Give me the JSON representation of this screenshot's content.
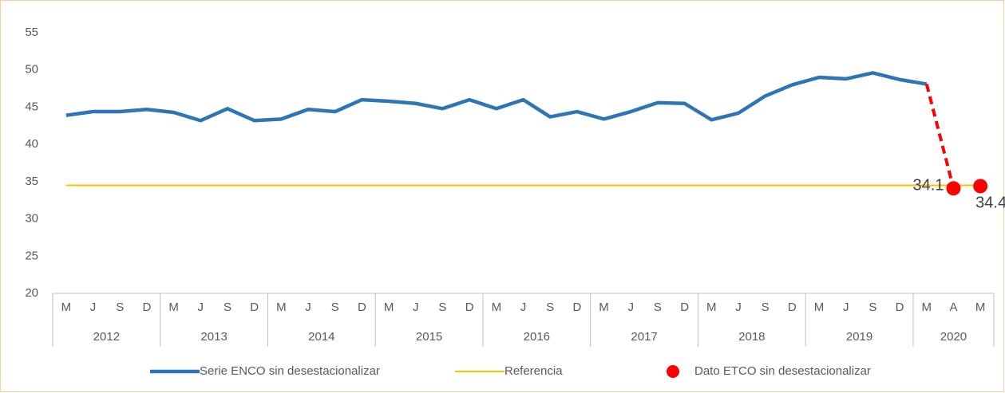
{
  "chart_data": {
    "type": "line",
    "groups": [
      {
        "label": "2012",
        "months": [
          "M",
          "J",
          "S",
          "D"
        ]
      },
      {
        "label": "2013",
        "months": [
          "M",
          "J",
          "S",
          "D"
        ]
      },
      {
        "label": "2014",
        "months": [
          "M",
          "J",
          "S",
          "D"
        ]
      },
      {
        "label": "2015",
        "months": [
          "M",
          "J",
          "S",
          "D"
        ]
      },
      {
        "label": "2016",
        "months": [
          "M",
          "J",
          "S",
          "D"
        ]
      },
      {
        "label": "2017",
        "months": [
          "M",
          "J",
          "S",
          "D"
        ]
      },
      {
        "label": "2018",
        "months": [
          "M",
          "J",
          "S",
          "D"
        ]
      },
      {
        "label": "2019",
        "months": [
          "M",
          "J",
          "S",
          "D"
        ]
      },
      {
        "label": "2020",
        "months": [
          "M",
          "A",
          "M"
        ]
      }
    ],
    "series": [
      {
        "name": "Serie ENCO sin desestacionalizar",
        "color": "#2e75b6",
        "values": [
          43.9,
          44.4,
          44.4,
          44.7,
          44.3,
          43.2,
          44.8,
          43.2,
          43.4,
          44.7,
          44.4,
          46.0,
          45.8,
          45.5,
          44.8,
          46.0,
          44.8,
          46.0,
          43.7,
          44.4,
          43.4,
          44.4,
          45.6,
          45.5,
          43.3,
          44.2,
          46.5,
          48.0,
          49.0,
          48.8,
          49.6,
          48.7,
          48.1,
          null,
          null
        ]
      },
      {
        "name": "Referencia",
        "color": "#ffc000",
        "values": [
          34.5,
          34.5,
          34.5,
          34.5,
          34.5,
          34.5,
          34.5,
          34.5,
          34.5,
          34.5,
          34.5,
          34.5,
          34.5,
          34.5,
          34.5,
          34.5,
          34.5,
          34.5,
          34.5,
          34.5,
          34.5,
          34.5,
          34.5,
          34.5,
          34.5,
          34.5,
          34.5,
          34.5,
          34.5,
          34.5,
          34.5,
          34.5,
          34.5,
          34.5,
          34.5
        ]
      },
      {
        "name": "Dato ETCO sin desestacionalizar",
        "color": "#ff0000",
        "marker": "dot",
        "values": [
          null,
          null,
          null,
          null,
          null,
          null,
          null,
          null,
          null,
          null,
          null,
          null,
          null,
          null,
          null,
          null,
          null,
          null,
          null,
          null,
          null,
          null,
          null,
          null,
          null,
          null,
          null,
          null,
          null,
          null,
          null,
          null,
          null,
          34.1,
          34.4
        ]
      }
    ],
    "ylim": [
      20,
      55
    ],
    "yticks": [
      20,
      25,
      30,
      35,
      40,
      45,
      50,
      55
    ]
  }
}
